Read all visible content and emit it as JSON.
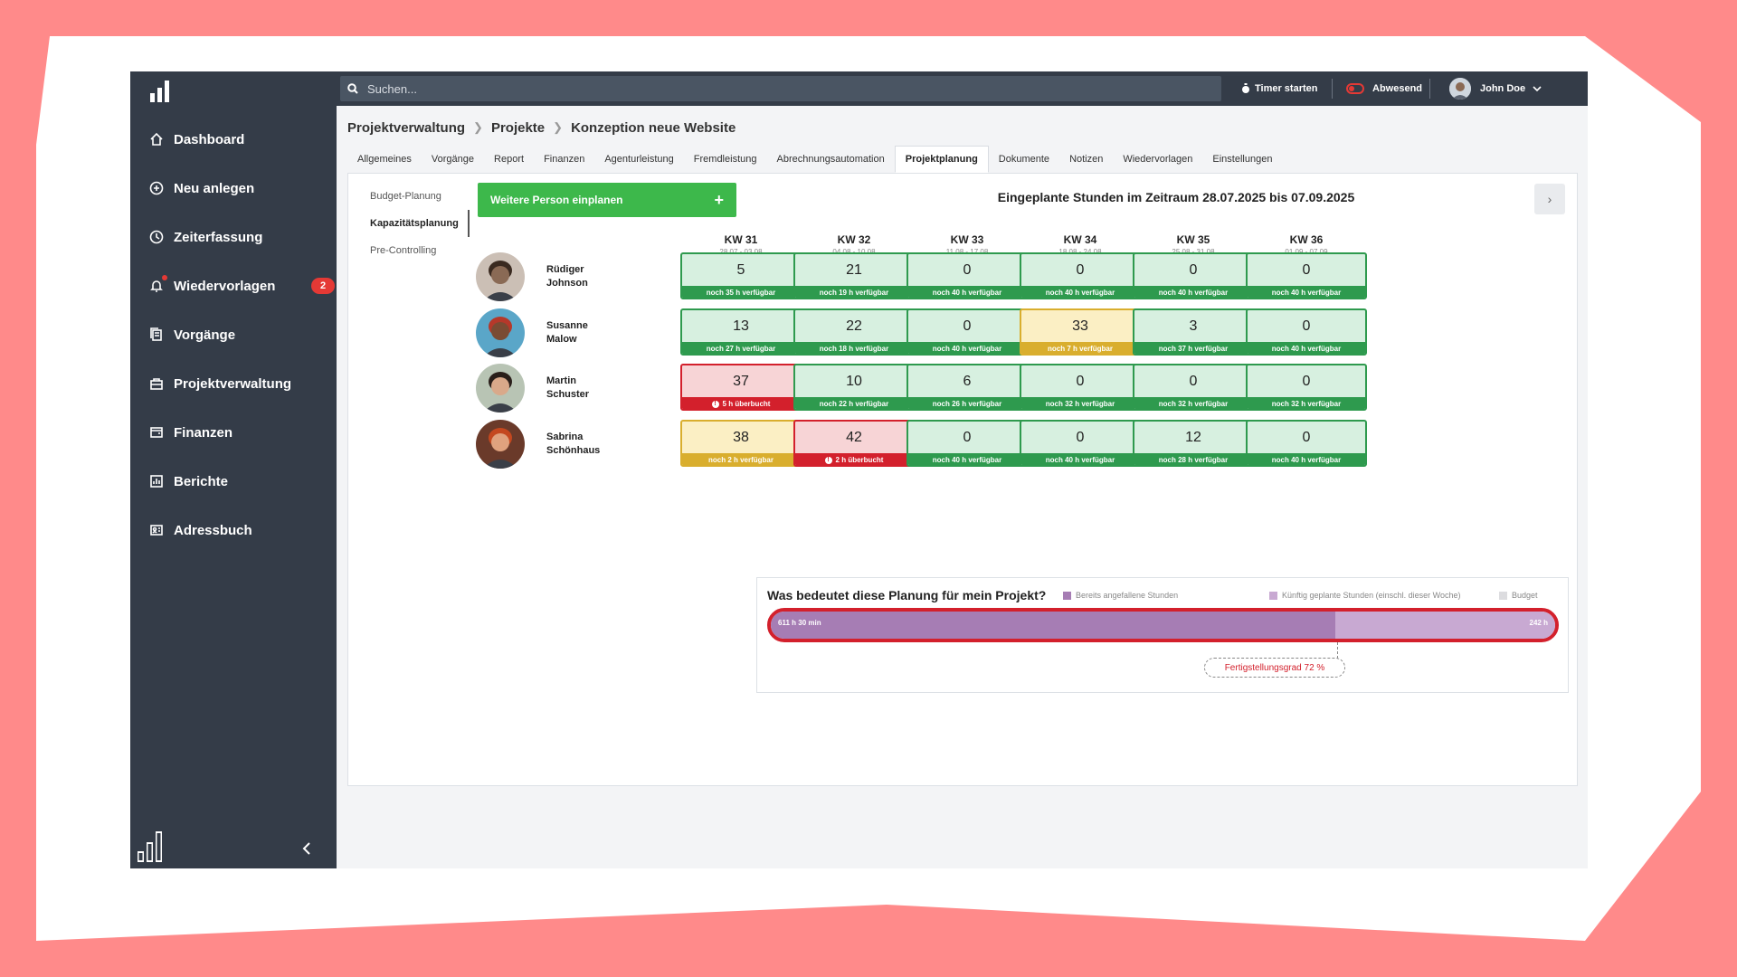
{
  "sidebar": {
    "items": [
      {
        "label": "Dashboard",
        "icon": "home-icon"
      },
      {
        "label": "Neu anlegen",
        "icon": "plus-circle-icon"
      },
      {
        "label": "Zeiterfassung",
        "icon": "clock-icon"
      },
      {
        "label": "Wiedervorlagen",
        "icon": "bell-icon",
        "badge": "2"
      },
      {
        "label": "Vorgänge",
        "icon": "documents-icon"
      },
      {
        "label": "Projektverwaltung",
        "icon": "briefcase-icon"
      },
      {
        "label": "Finanzen",
        "icon": "wallet-icon"
      },
      {
        "label": "Berichte",
        "icon": "chart-icon"
      },
      {
        "label": "Adressbuch",
        "icon": "contact-card-icon"
      }
    ]
  },
  "topbar": {
    "search_placeholder": "Suchen...",
    "timer_label": "Timer starten",
    "absent_label": "Abwesend",
    "user_name": "John Doe"
  },
  "breadcrumb": [
    "Projektverwaltung",
    "Projekte",
    "Konzeption neue Website"
  ],
  "tabs": [
    {
      "label": "Allgemeines"
    },
    {
      "label": "Vorgänge"
    },
    {
      "label": "Report"
    },
    {
      "label": "Finanzen"
    },
    {
      "label": "Agenturleistung"
    },
    {
      "label": "Fremdleistung"
    },
    {
      "label": "Abrechnungsautomation"
    },
    {
      "label": "Projektplanung",
      "active": true
    },
    {
      "label": "Dokumente"
    },
    {
      "label": "Notizen"
    },
    {
      "label": "Wiedervorlagen"
    },
    {
      "label": "Einstellungen"
    }
  ],
  "subnav": [
    {
      "label": "Budget-Planung"
    },
    {
      "label": "Kapazitätsplanung",
      "active": true
    },
    {
      "label": "Pre-Controlling"
    }
  ],
  "add_person_label": "Weitere Person einplanen",
  "range_title": "Eingeplante Stunden im Zeitraum 28.07.2025 bis 07.09.2025",
  "weeks": [
    {
      "kw": "KW 31",
      "dates": "28.07 - 03.08"
    },
    {
      "kw": "KW 32",
      "dates": "04.08 - 10.08"
    },
    {
      "kw": "KW 33",
      "dates": "11.08 - 17.08"
    },
    {
      "kw": "KW 34",
      "dates": "18.08 - 24.08"
    },
    {
      "kw": "KW 35",
      "dates": "25.08 - 31.08"
    },
    {
      "kw": "KW 36",
      "dates": "01.09 - 07.09"
    }
  ],
  "people": [
    {
      "first": "Rüdiger",
      "last": "Johnson",
      "skin": "#8a6a55",
      "hair": "#3a2a20",
      "bg": "#cbbfb5",
      "cells": [
        {
          "hours": "5",
          "note": "noch 35 h verfügbar",
          "status": "ok"
        },
        {
          "hours": "21",
          "note": "noch 19 h verfügbar",
          "status": "ok"
        },
        {
          "hours": "0",
          "note": "noch 40 h verfügbar",
          "status": "ok"
        },
        {
          "hours": "0",
          "note": "noch 40 h verfügbar",
          "status": "ok"
        },
        {
          "hours": "0",
          "note": "noch 40 h verfügbar",
          "status": "ok"
        },
        {
          "hours": "0",
          "note": "noch 40 h verfügbar",
          "status": "ok"
        }
      ]
    },
    {
      "first": "Susanne",
      "last": "Malow",
      "skin": "#7a4b33",
      "hair": "#b5382a",
      "bg": "#5aa6c8",
      "cells": [
        {
          "hours": "13",
          "note": "noch 27 h verfügbar",
          "status": "ok"
        },
        {
          "hours": "22",
          "note": "noch 18 h verfügbar",
          "status": "ok"
        },
        {
          "hours": "0",
          "note": "noch 40 h verfügbar",
          "status": "ok"
        },
        {
          "hours": "33",
          "note": "noch 7 h verfügbar",
          "status": "warn"
        },
        {
          "hours": "3",
          "note": "noch 37 h verfügbar",
          "status": "ok"
        },
        {
          "hours": "0",
          "note": "noch 40 h verfügbar",
          "status": "ok"
        }
      ]
    },
    {
      "first": "Martin",
      "last": "Schuster",
      "skin": "#d9a98a",
      "hair": "#2a1f1a",
      "bg": "#b8c4b4",
      "cells": [
        {
          "hours": "37",
          "note": "5 h überbucht",
          "status": "over"
        },
        {
          "hours": "10",
          "note": "noch 22 h verfügbar",
          "status": "ok"
        },
        {
          "hours": "6",
          "note": "noch 26 h verfügbar",
          "status": "ok"
        },
        {
          "hours": "0",
          "note": "noch 32 h verfügbar",
          "status": "ok"
        },
        {
          "hours": "0",
          "note": "noch 32 h verfügbar",
          "status": "ok"
        },
        {
          "hours": "0",
          "note": "noch 32 h verfügbar",
          "status": "ok"
        }
      ]
    },
    {
      "first": "Sabrina",
      "last": "Schönhaus",
      "skin": "#e0a27e",
      "hair": "#c4481f",
      "bg": "#6a3a2a",
      "cells": [
        {
          "hours": "38",
          "note": "noch 2 h verfügbar",
          "status": "warn"
        },
        {
          "hours": "42",
          "note": "2 h überbucht",
          "status": "over"
        },
        {
          "hours": "0",
          "note": "noch 40 h verfügbar",
          "status": "ok"
        },
        {
          "hours": "0",
          "note": "noch 40 h verfügbar",
          "status": "ok"
        },
        {
          "hours": "12",
          "note": "noch 28 h verfügbar",
          "status": "ok"
        },
        {
          "hours": "0",
          "note": "noch 40 h verfügbar",
          "status": "ok"
        }
      ]
    }
  ],
  "summary": {
    "title": "Was bedeutet diese Planung für mein Projekt?",
    "legend": [
      {
        "label": "Bereits angefallene Stunden",
        "color": "#a67db4"
      },
      {
        "label": "Künftig geplante Stunden (einschl. dieser Woche)",
        "color": "#c8a9d2"
      },
      {
        "label": "Budget",
        "color": "#dcdcdf"
      }
    ],
    "spent_label": "611 h 30 min",
    "planned_label": "242 h",
    "spent_fraction": 0.72,
    "total_fraction": 0.72,
    "budget_fraction": 0.52,
    "completion_label": "Fertigstellungsgrad 72 %"
  },
  "colors": {
    "sidebar": "#343c48",
    "accent_green": "#3db84b",
    "ok": "#2e9a4e",
    "warn": "#d9ae2e",
    "over": "#d3202c"
  }
}
